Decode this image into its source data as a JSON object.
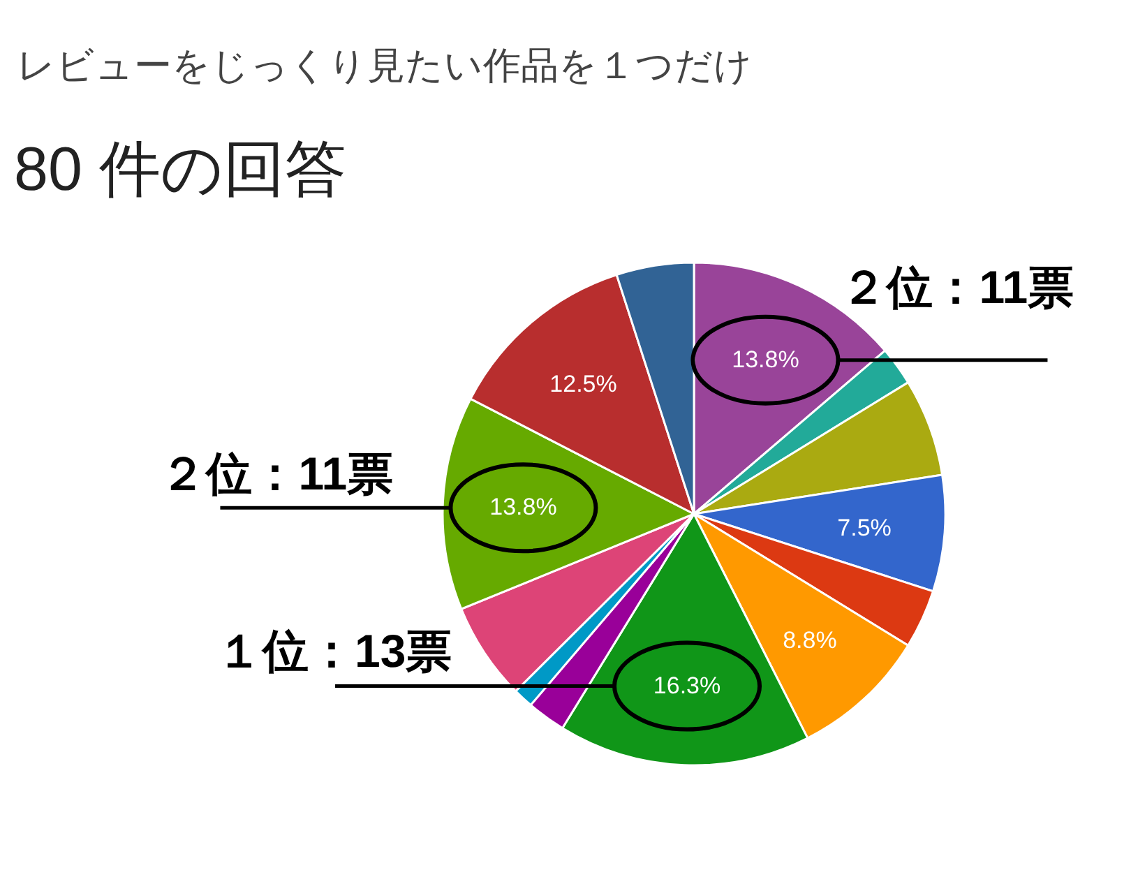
{
  "chart_data": {
    "type": "pie",
    "title": "レビューをじっくり見たい作品を１つだけ",
    "subtitle": "80 件の回答",
    "categories": [
      null,
      null,
      null,
      null,
      null,
      null,
      null,
      null,
      null,
      null,
      null,
      null,
      null
    ],
    "values": [
      13.8,
      2.5,
      6.3,
      7.5,
      3.8,
      8.8,
      16.3,
      2.5,
      1.3,
      6.3,
      13.8,
      12.5,
      5
    ],
    "colors": [
      "#994499",
      "#22aa99",
      "#aaaa11",
      "#3366cc",
      "#dc3912",
      "#ff9900",
      "#109618",
      "#990099",
      "#0099c6",
      "#dd4477",
      "#66aa00",
      "#b82e2e",
      "#316395"
    ],
    "value_labels": [
      "13.8%",
      null,
      null,
      "7.5%",
      null,
      "8.8%",
      "16.3%",
      null,
      null,
      null,
      "13.8%",
      "12.5%",
      null
    ],
    "annotations": [
      "２位：11票",
      "２位：11票",
      "１位：13票"
    ],
    "legend": false
  }
}
